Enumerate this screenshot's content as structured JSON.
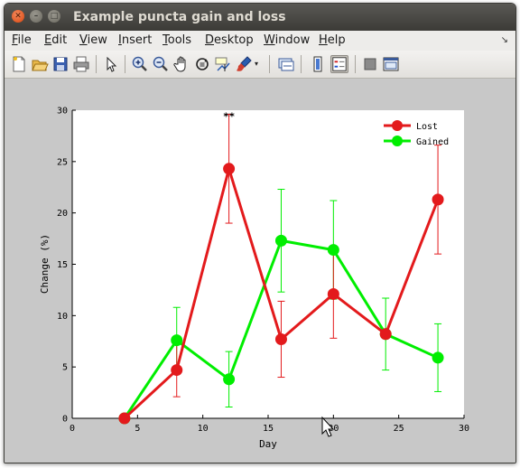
{
  "window": {
    "title": "Example puncta gain and loss",
    "controls": [
      "close-icon",
      "minimize-icon",
      "maximize-icon"
    ]
  },
  "menu": {
    "items": [
      {
        "label": "File"
      },
      {
        "label": "Edit"
      },
      {
        "label": "View"
      },
      {
        "label": "Insert"
      },
      {
        "label": "Tools"
      },
      {
        "label": "Desktop"
      },
      {
        "label": "Window"
      },
      {
        "label": "Help"
      }
    ],
    "dock_icon": "dock-arrow-icon"
  },
  "toolbar": {
    "buttons": [
      "new-figure-icon",
      "open-file-icon",
      "save-icon",
      "print-icon",
      "edit-plot-arrow-icon",
      "zoom-in-icon",
      "zoom-out-icon",
      "pan-hand-icon",
      "rotate-3d-icon",
      "data-cursor-icon",
      "brush-icon",
      "brush-dropdown-icon",
      "link-plot-icon",
      "insert-colorbar-icon",
      "insert-legend-icon",
      "hide-plot-tools-icon",
      "show-plot-tools-icon"
    ]
  },
  "chart_data": {
    "type": "line",
    "xlabel": "Day",
    "ylabel": "Change (%)",
    "xlim": [
      0,
      30
    ],
    "ylim": [
      0,
      30
    ],
    "xticks": [
      0,
      5,
      10,
      15,
      20,
      25,
      30
    ],
    "yticks": [
      0,
      5,
      10,
      15,
      20,
      25,
      30
    ],
    "grid": false,
    "legend_position": "top-right",
    "x": [
      4,
      8,
      12,
      16,
      20,
      24,
      28
    ],
    "series": [
      {
        "name": "Lost",
        "color": "#e31a1c",
        "values": [
          0,
          4.7,
          24.3,
          7.7,
          12.1,
          8.2,
          21.3
        ],
        "err": [
          0,
          2.6,
          5.3,
          3.7,
          4.3,
          0,
          5.3
        ]
      },
      {
        "name": "Gained",
        "color": "#00ee00",
        "values": [
          0,
          7.6,
          3.8,
          17.3,
          16.4,
          8.2,
          5.9
        ],
        "err": [
          0,
          3.2,
          2.7,
          5.0,
          4.8,
          3.5,
          3.3
        ]
      }
    ],
    "annotations": [
      {
        "text": "**",
        "x": 12,
        "y": 29.5
      }
    ]
  },
  "colors": {
    "titlebar": "#3c3b37",
    "menubar": "#edecea",
    "figure_bg": "#c8c8c8",
    "axes_bg": "#ffffff"
  }
}
